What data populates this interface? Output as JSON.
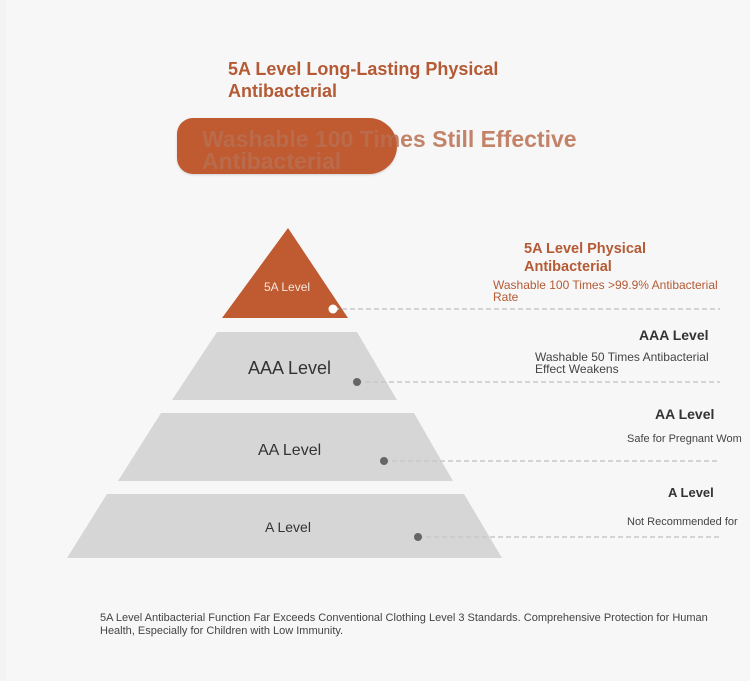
{
  "header": {
    "title": "5A Level Long-Lasting Physical Antibacterial",
    "pill_text": "Washable 100 Times Still Effective Antibacterial"
  },
  "pyramid": {
    "tiers": [
      {
        "label": "5A Level",
        "color": "#c05a30"
      },
      {
        "label": "AAA Level",
        "color": "#d6d6d6"
      },
      {
        "label": "AA Level",
        "color": "#d6d6d6"
      },
      {
        "label": "A Level",
        "color": "#d6d6d6"
      }
    ]
  },
  "levels": [
    {
      "title": "5A Level Physical Antibacterial",
      "desc": "Washable 100 Times >99.9% Antibacterial Rate"
    },
    {
      "title": "AAA Level",
      "desc": "Washable 50 Times Antibacterial Effect Weakens"
    },
    {
      "title": "AA Level",
      "desc": "Safe for Pregnant Wom"
    },
    {
      "title": "A Level",
      "desc": "Not Recommended for"
    }
  ],
  "footer": {
    "text": "5A Level Antibacterial Function Far Exceeds Conventional Clothing Level 3 Standards. Comprehensive Protection for Human Health, Especially for Children with Low Immunity."
  },
  "colors": {
    "accent": "#c05a30",
    "accent_text": "#b45a35",
    "tier_gray": "#d6d6d6"
  }
}
